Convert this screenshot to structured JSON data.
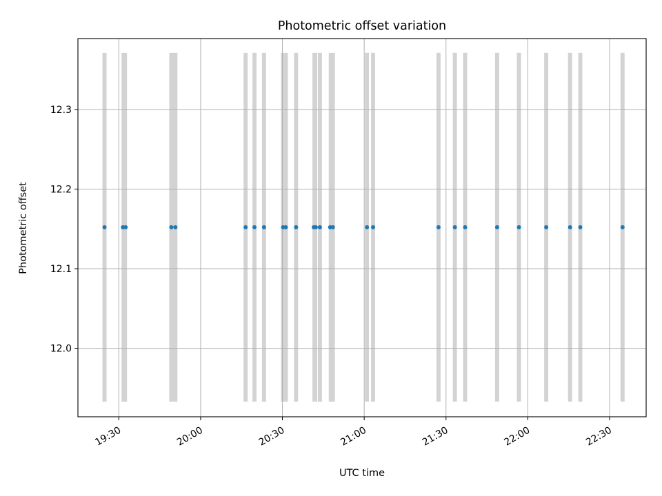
{
  "chart_data": {
    "type": "scatter",
    "title": "Photometric offset variation",
    "xlabel": "UTC time",
    "ylabel": "Photometric offset",
    "x_ticks": [
      "19:30",
      "20:00",
      "20:30",
      "21:00",
      "21:30",
      "22:00",
      "22:30"
    ],
    "x_tick_minutes": [
      1170,
      1200,
      1230,
      1260,
      1290,
      1320,
      1350
    ],
    "y_ticks": [
      "12.0",
      "12.1",
      "12.2",
      "12.3"
    ],
    "y_tick_values": [
      12.0,
      12.1,
      12.2,
      12.3
    ],
    "xlim_minutes": [
      1155.0,
      1363.4
    ],
    "ylim": [
      11.914,
      12.389
    ],
    "grid": true,
    "band_range": [
      11.933,
      12.371
    ],
    "bands": [
      {
        "start": "19:24:00",
        "end": "19:25:30"
      },
      {
        "start": "19:31:00",
        "end": "19:33:00"
      },
      {
        "start": "19:48:30",
        "end": "19:51:30"
      },
      {
        "start": "20:15:45",
        "end": "20:17:15"
      },
      {
        "start": "20:19:00",
        "end": "20:20:30"
      },
      {
        "start": "20:22:30",
        "end": "20:24:00"
      },
      {
        "start": "20:29:30",
        "end": "20:32:00"
      },
      {
        "start": "20:34:15",
        "end": "20:35:45"
      },
      {
        "start": "20:41:00",
        "end": "20:42:45"
      },
      {
        "start": "20:43:00",
        "end": "20:44:30"
      },
      {
        "start": "20:47:00",
        "end": "20:49:15"
      },
      {
        "start": "21:00:15",
        "end": "21:01:45"
      },
      {
        "start": "21:02:30",
        "end": "21:04:00"
      },
      {
        "start": "21:26:30",
        "end": "21:28:00"
      },
      {
        "start": "21:32:30",
        "end": "21:34:00"
      },
      {
        "start": "21:36:15",
        "end": "21:37:45"
      },
      {
        "start": "21:48:00",
        "end": "21:49:30"
      },
      {
        "start": "21:56:00",
        "end": "21:57:30"
      },
      {
        "start": "22:06:00",
        "end": "22:07:30"
      },
      {
        "start": "22:14:45",
        "end": "22:16:15"
      },
      {
        "start": "22:18:30",
        "end": "22:20:00"
      },
      {
        "start": "22:34:00",
        "end": "22:35:30"
      }
    ],
    "series": [
      {
        "color": "#1f77b4",
        "points": [
          {
            "x": "19:24:45",
            "y": 12.152
          },
          {
            "x": "19:31:30",
            "y": 12.152
          },
          {
            "x": "19:32:30",
            "y": 12.152
          },
          {
            "x": "19:49:15",
            "y": 12.152
          },
          {
            "x": "19:50:45",
            "y": 12.152
          },
          {
            "x": "20:16:30",
            "y": 12.152
          },
          {
            "x": "20:19:45",
            "y": 12.152
          },
          {
            "x": "20:23:15",
            "y": 12.152
          },
          {
            "x": "20:30:15",
            "y": 12.152
          },
          {
            "x": "20:31:15",
            "y": 12.152
          },
          {
            "x": "20:35:00",
            "y": 12.152
          },
          {
            "x": "20:41:30",
            "y": 12.152
          },
          {
            "x": "20:42:15",
            "y": 12.152
          },
          {
            "x": "20:43:45",
            "y": 12.152
          },
          {
            "x": "20:47:30",
            "y": 12.152
          },
          {
            "x": "20:48:30",
            "y": 12.152
          },
          {
            "x": "21:01:00",
            "y": 12.152
          },
          {
            "x": "21:03:15",
            "y": 12.152
          },
          {
            "x": "21:27:15",
            "y": 12.152
          },
          {
            "x": "21:33:15",
            "y": 12.152
          },
          {
            "x": "21:37:00",
            "y": 12.152
          },
          {
            "x": "21:48:45",
            "y": 12.152
          },
          {
            "x": "21:56:45",
            "y": 12.152
          },
          {
            "x": "22:06:45",
            "y": 12.152
          },
          {
            "x": "22:15:30",
            "y": 12.152
          },
          {
            "x": "22:19:15",
            "y": 12.152
          },
          {
            "x": "22:34:45",
            "y": 12.152
          }
        ]
      }
    ],
    "colors": {
      "band": "#d3d3d3",
      "grid": "#b0b0b0",
      "axes": "#000000"
    }
  }
}
